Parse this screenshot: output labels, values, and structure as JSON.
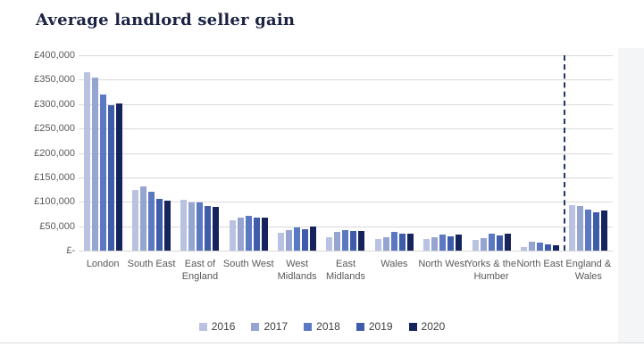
{
  "page": {
    "title_color": "#1c2444"
  },
  "chart_data": {
    "type": "bar",
    "title": "Average landlord seller gain",
    "categories": [
      "London",
      "South East",
      "East of England",
      "South West",
      "West Midlands",
      "East Midlands",
      "Wales",
      "North West",
      "Yorks & the Humber",
      "North East",
      "England & Wales"
    ],
    "series": [
      {
        "name": "2016",
        "color": "#b9c3e1",
        "values": [
          365000,
          125000,
          105000,
          62000,
          36000,
          28000,
          24000,
          23000,
          22000,
          8000,
          93000
        ]
      },
      {
        "name": "2017",
        "color": "#96a4d2",
        "values": [
          355000,
          132000,
          99000,
          68000,
          43000,
          38000,
          27000,
          27000,
          25000,
          18000,
          92000
        ]
      },
      {
        "name": "2018",
        "color": "#5b78c2",
        "values": [
          320000,
          120000,
          99000,
          71000,
          47000,
          43000,
          38000,
          33000,
          34000,
          16000,
          85000
        ]
      },
      {
        "name": "2019",
        "color": "#3f5caa",
        "values": [
          297000,
          106000,
          91000,
          67000,
          44000,
          41000,
          34000,
          30000,
          32000,
          13000,
          79000
        ]
      },
      {
        "name": "2020",
        "color": "#16245e",
        "values": [
          302000,
          102000,
          89000,
          68000,
          50000,
          41000,
          35000,
          33000,
          34000,
          11000,
          82000
        ]
      }
    ],
    "xlabel": "",
    "ylabel": "",
    "ylim": [
      0,
      400000
    ],
    "ytick_labels_top_to_bottom": [
      "£400,000",
      "£350,000",
      "£300,000",
      "£250,000",
      "£200,000",
      "£150,000",
      "£100,000",
      "£50,000",
      "£-"
    ],
    "grid": true,
    "legend_position": "bottom",
    "legend_entries": [
      "2016",
      "2017",
      "2018",
      "2019",
      "2020"
    ],
    "separator_before_category": "England & Wales",
    "colors": {
      "gridline": "#d9d9d9",
      "axis_text": "#595959",
      "separator": "#1f3864",
      "title": "#1c2444"
    }
  }
}
